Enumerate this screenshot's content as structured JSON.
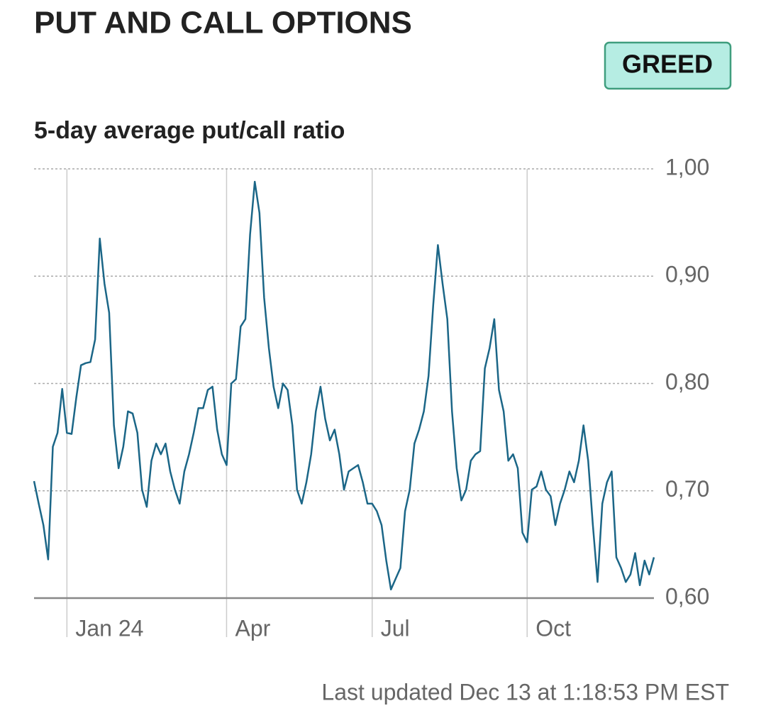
{
  "chart_data": {
    "type": "line",
    "title": "PUT AND CALL OPTIONS",
    "badge": "GREED",
    "subtitle": "5-day average put/call ratio",
    "footer": "Last updated Dec 13 at 1:18:53 PM EST",
    "categories": [
      null,
      null,
      null,
      null,
      null,
      null,
      null,
      "Jan 24",
      null,
      null,
      null,
      null,
      null,
      null,
      null,
      null,
      null,
      null,
      null,
      null,
      null,
      null,
      null,
      null,
      null,
      null,
      null,
      null,
      null,
      null,
      null,
      null,
      null,
      null,
      null,
      null,
      null,
      null,
      null,
      null,
      null,
      "Apr",
      null,
      null,
      null,
      null,
      null,
      null,
      null,
      null,
      null,
      null,
      null,
      null,
      null,
      null,
      null,
      null,
      null,
      null,
      null,
      null,
      null,
      null,
      null,
      null,
      null,
      null,
      null,
      null,
      null,
      null,
      "Jul",
      null,
      null,
      null,
      null,
      null,
      null,
      null,
      null,
      null,
      null,
      null,
      null,
      null,
      null,
      null,
      null,
      null,
      null,
      null,
      null,
      null,
      null,
      null,
      null,
      null,
      null,
      null,
      null,
      null,
      null,
      null,
      null,
      "Oct",
      null,
      null,
      null,
      null,
      null,
      null,
      null,
      null,
      null,
      null,
      null,
      null,
      null,
      null,
      null,
      null,
      null,
      null,
      null,
      null,
      null,
      null,
      null,
      null,
      null,
      null,
      null
    ],
    "series": [
      {
        "name": "5-day average put/call ratio",
        "color": "#1b6687",
        "values": [
          0.709,
          0.688,
          0.668,
          0.636,
          0.741,
          0.754,
          0.795,
          0.754,
          0.753,
          0.787,
          0.817,
          0.819,
          0.82,
          0.841,
          0.935,
          0.893,
          0.866,
          0.761,
          0.721,
          0.741,
          0.774,
          0.772,
          0.754,
          0.701,
          0.685,
          0.728,
          0.744,
          0.734,
          0.744,
          0.718,
          0.701,
          0.688,
          0.718,
          0.734,
          0.754,
          0.777,
          0.777,
          0.794,
          0.797,
          0.757,
          0.734,
          0.724,
          0.8,
          0.804,
          0.853,
          0.86,
          0.939,
          0.988,
          0.959,
          0.88,
          0.833,
          0.797,
          0.777,
          0.8,
          0.794,
          0.761,
          0.701,
          0.688,
          0.708,
          0.734,
          0.774,
          0.797,
          0.767,
          0.747,
          0.757,
          0.734,
          0.701,
          0.718,
          0.721,
          0.724,
          0.708,
          0.688,
          0.688,
          0.681,
          0.668,
          0.635,
          0.608,
          0.618,
          0.628,
          0.681,
          0.701,
          0.744,
          0.757,
          0.774,
          0.807,
          0.873,
          0.929,
          0.893,
          0.86,
          0.774,
          0.721,
          0.691,
          0.701,
          0.728,
          0.734,
          0.737,
          0.814,
          0.833,
          0.86,
          0.794,
          0.774,
          0.728,
          0.734,
          0.721,
          0.661,
          0.652,
          0.701,
          0.704,
          0.718,
          0.701,
          0.695,
          0.668,
          0.688,
          0.701,
          0.718,
          0.708,
          0.728,
          0.761,
          0.728,
          0.668,
          0.615,
          0.688,
          0.708,
          0.718,
          0.638,
          0.628,
          0.615,
          0.622,
          0.642,
          0.612,
          0.635,
          0.622,
          0.638
        ]
      }
    ],
    "ylim": [
      0.6,
      1.0
    ],
    "yticks": [
      {
        "value": 0.6,
        "label": "0,60"
      },
      {
        "value": 0.7,
        "label": "0,70"
      },
      {
        "value": 0.8,
        "label": "0,80"
      },
      {
        "value": 0.9,
        "label": "0,90"
      },
      {
        "value": 1.0,
        "label": "1,00"
      }
    ],
    "grid": true
  }
}
